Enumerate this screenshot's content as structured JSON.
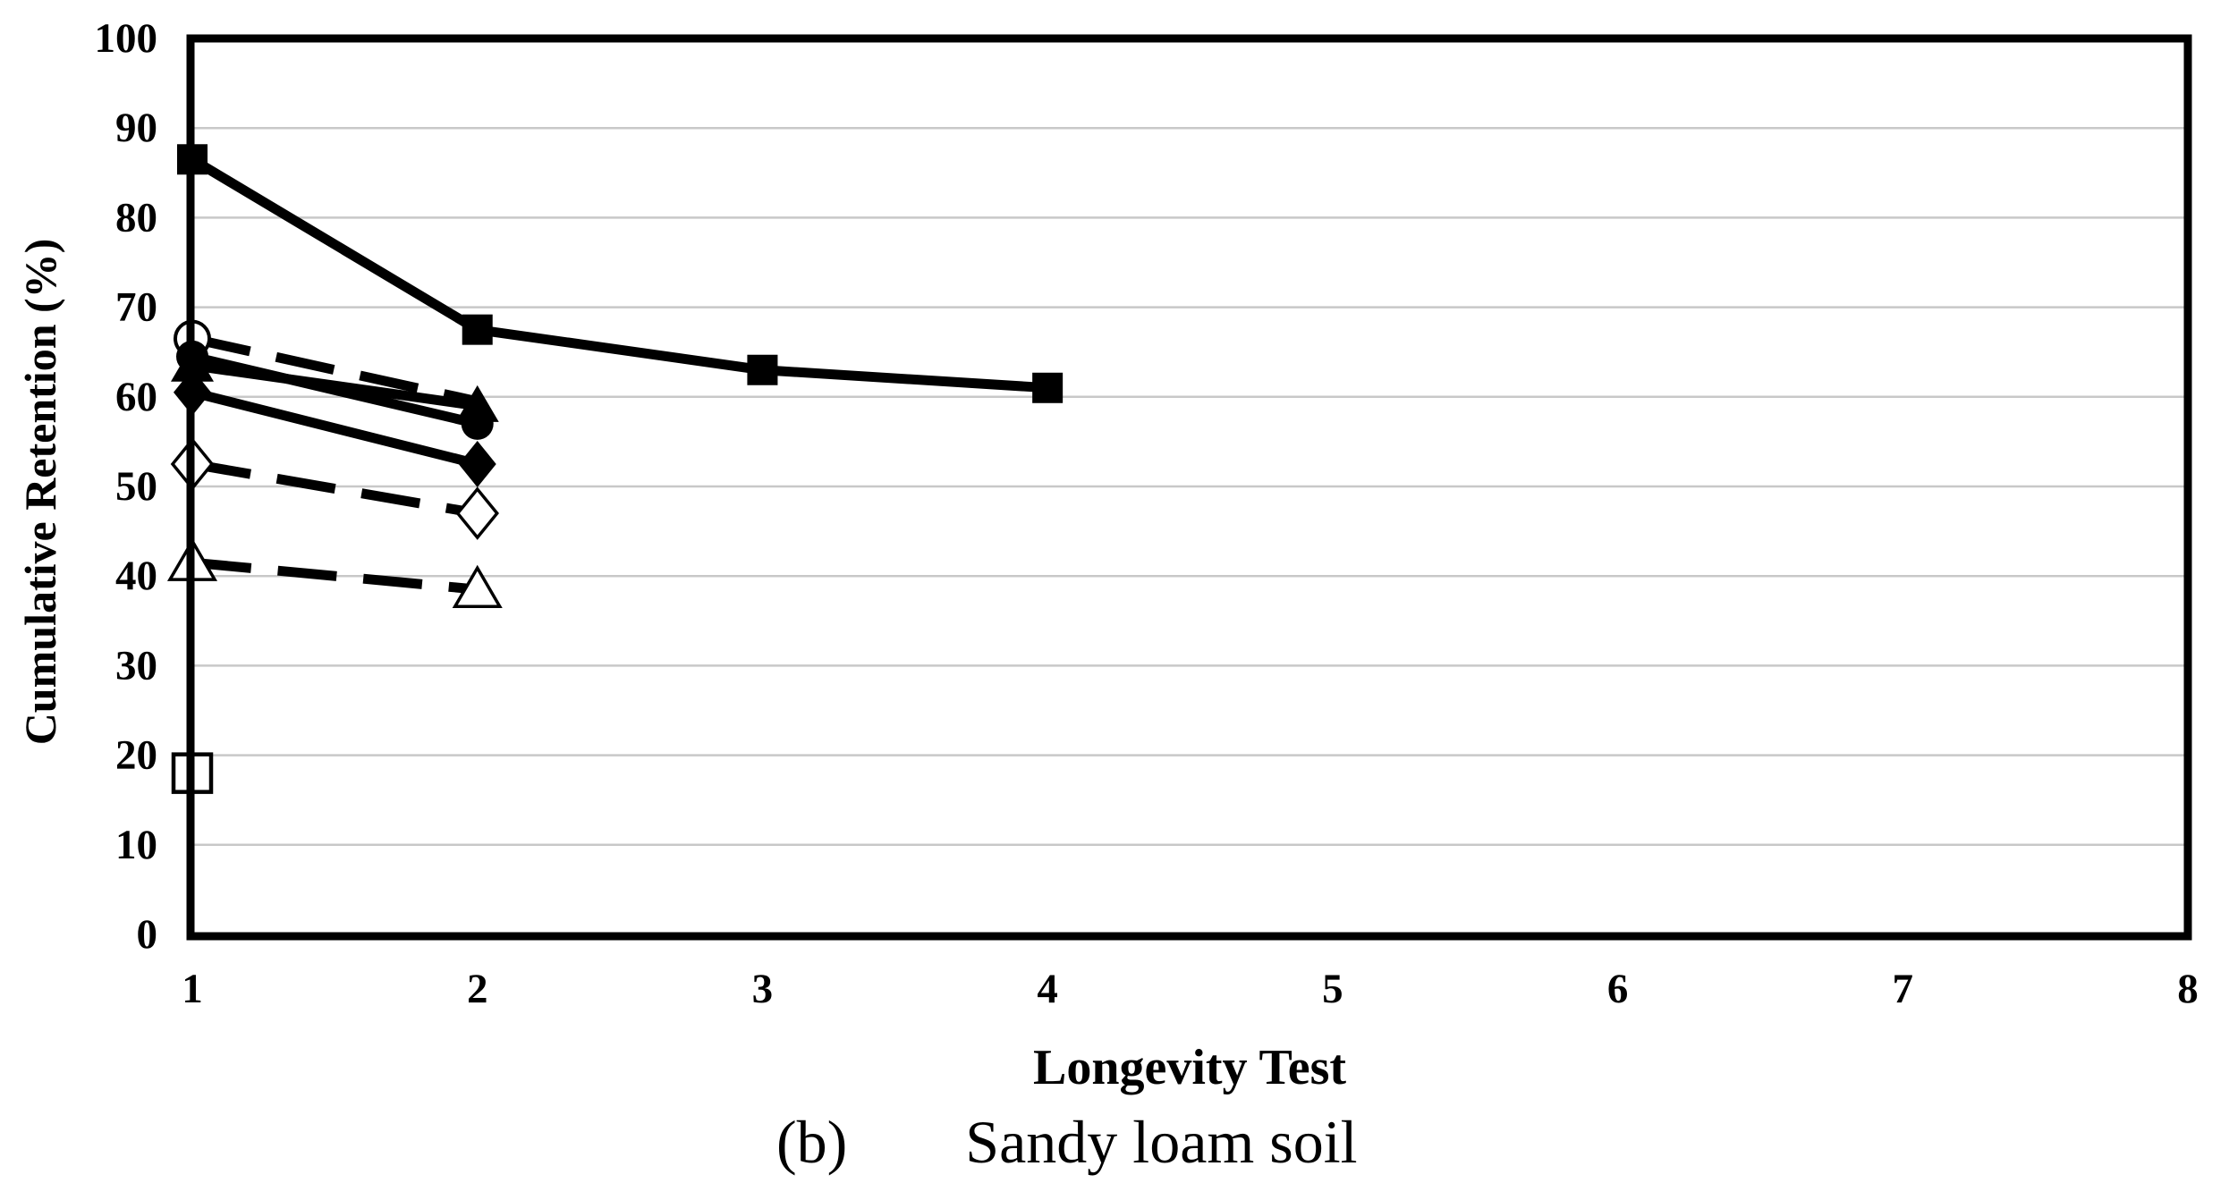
{
  "figure": {
    "caption_prefix": "(b)",
    "caption_text": "Sandy loam soil"
  },
  "chart_data": {
    "type": "line",
    "title": "",
    "xlabel": "Longevity Test",
    "ylabel": "Cumulative Retention (%)",
    "xlim": [
      1,
      8
    ],
    "ylim": [
      0,
      100
    ],
    "x_ticks": [
      1,
      2,
      3,
      4,
      5,
      6,
      7,
      8
    ],
    "y_ticks": [
      0,
      10,
      20,
      30,
      40,
      50,
      60,
      70,
      80,
      90,
      100
    ],
    "grid": "horizontal-gray-lines",
    "legend_position": "none",
    "colors": {
      "series": "#000000",
      "grid": "#c8c8c8",
      "background": "#ffffff",
      "border": "#000000"
    },
    "series": [
      {
        "name": "filled-square-series",
        "marker": "square-filled",
        "line": "solid",
        "points": [
          [
            1,
            86.5
          ],
          [
            2,
            67.5
          ],
          [
            3,
            63
          ],
          [
            4,
            61
          ]
        ]
      },
      {
        "name": "open-circle-series",
        "marker": "circle-open",
        "line": "dashed",
        "points": [
          [
            1,
            66.5
          ],
          [
            2,
            59.5
          ]
        ],
        "marker_hidden_points": [
          1
        ]
      },
      {
        "name": "filled-triangle-series",
        "marker": "triangle-filled",
        "line": "solid",
        "points": [
          [
            1,
            63.5
          ],
          [
            2,
            59
          ]
        ]
      },
      {
        "name": "filled-circle-series",
        "marker": "circle-filled",
        "line": "solid",
        "points": [
          [
            1,
            64.5
          ],
          [
            2,
            57
          ]
        ]
      },
      {
        "name": "filled-diamond-series",
        "marker": "diamond-filled",
        "line": "solid",
        "points": [
          [
            1,
            60.5
          ],
          [
            2,
            52.5
          ]
        ]
      },
      {
        "name": "open-diamond-series",
        "marker": "diamond-open",
        "line": "dashed",
        "points": [
          [
            1,
            52.5
          ],
          [
            2,
            47
          ]
        ]
      },
      {
        "name": "open-triangle-series",
        "marker": "triangle-open",
        "line": "dashed",
        "points": [
          [
            1,
            41.5
          ],
          [
            2,
            38.5
          ]
        ]
      },
      {
        "name": "open-square-series",
        "marker": "square-open",
        "line": "none",
        "points": [
          [
            1,
            18
          ]
        ]
      }
    ]
  }
}
